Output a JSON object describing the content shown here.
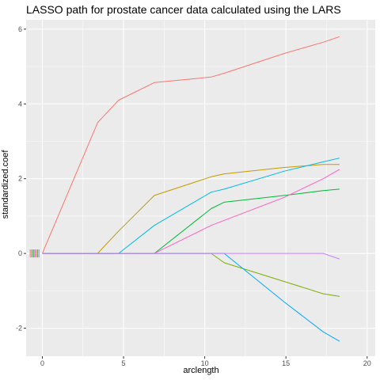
{
  "chart_data": {
    "type": "line",
    "title": "LASSO path for prostate cancer data calculated using the LARS",
    "xlabel": "arclength",
    "ylabel": "standardized.coef",
    "xlim": [
      -1.0,
      20.5
    ],
    "ylim": [
      -2.75,
      6.25
    ],
    "x_ticks": [
      0,
      5,
      10,
      15,
      20
    ],
    "y_ticks": [
      -2,
      0,
      2,
      4,
      6
    ],
    "grid": true,
    "panel_background": "#ebebeb",
    "series": [
      {
        "color": "#f8766d",
        "points": [
          [
            0,
            0
          ],
          [
            3.4,
            3.5
          ],
          [
            4.7,
            4.1
          ],
          [
            6.9,
            4.57
          ],
          [
            10.4,
            4.72
          ],
          [
            11.2,
            4.82
          ],
          [
            14.9,
            5.35
          ],
          [
            17.3,
            5.65
          ],
          [
            18.3,
            5.8
          ]
        ]
      },
      {
        "color": "#c49a00",
        "points": [
          [
            0,
            0
          ],
          [
            3.4,
            0
          ],
          [
            4.7,
            0.6
          ],
          [
            6.9,
            1.55
          ],
          [
            10.4,
            2.05
          ],
          [
            11.2,
            2.13
          ],
          [
            14.9,
            2.3
          ],
          [
            17.3,
            2.38
          ],
          [
            18.3,
            2.38
          ]
        ]
      },
      {
        "color": "#00b9e3",
        "points": [
          [
            0,
            0
          ],
          [
            4.7,
            0
          ],
          [
            6.9,
            0.75
          ],
          [
            10.4,
            1.64
          ],
          [
            11.2,
            1.72
          ],
          [
            14.9,
            2.2
          ],
          [
            17.3,
            2.45
          ],
          [
            18.3,
            2.55
          ]
        ]
      },
      {
        "color": "#00ba38",
        "points": [
          [
            0,
            0
          ],
          [
            6.9,
            0
          ],
          [
            10.4,
            1.2
          ],
          [
            11.2,
            1.37
          ],
          [
            14.9,
            1.55
          ],
          [
            17.3,
            1.68
          ],
          [
            18.3,
            1.72
          ]
        ]
      },
      {
        "color": "#ff61c3",
        "points": [
          [
            0,
            0
          ],
          [
            6.9,
            0
          ],
          [
            10.4,
            0.75
          ],
          [
            14.9,
            1.5
          ],
          [
            17.3,
            2.0
          ],
          [
            18.3,
            2.25
          ]
        ]
      },
      {
        "color": "#7cae00",
        "points": [
          [
            0,
            0
          ],
          [
            10.4,
            0
          ],
          [
            11.2,
            -0.25
          ],
          [
            14.9,
            -0.75
          ],
          [
            17.3,
            -1.08
          ],
          [
            18.3,
            -1.15
          ]
        ]
      },
      {
        "color": "#00a9ff",
        "points": [
          [
            0,
            0
          ],
          [
            11.2,
            0
          ],
          [
            14.9,
            -1.3
          ],
          [
            17.3,
            -2.1
          ],
          [
            18.3,
            -2.35
          ]
        ]
      },
      {
        "color": "#c77cff",
        "points": [
          [
            0,
            0
          ],
          [
            17.3,
            0
          ],
          [
            18.3,
            -0.15
          ]
        ]
      }
    ]
  }
}
